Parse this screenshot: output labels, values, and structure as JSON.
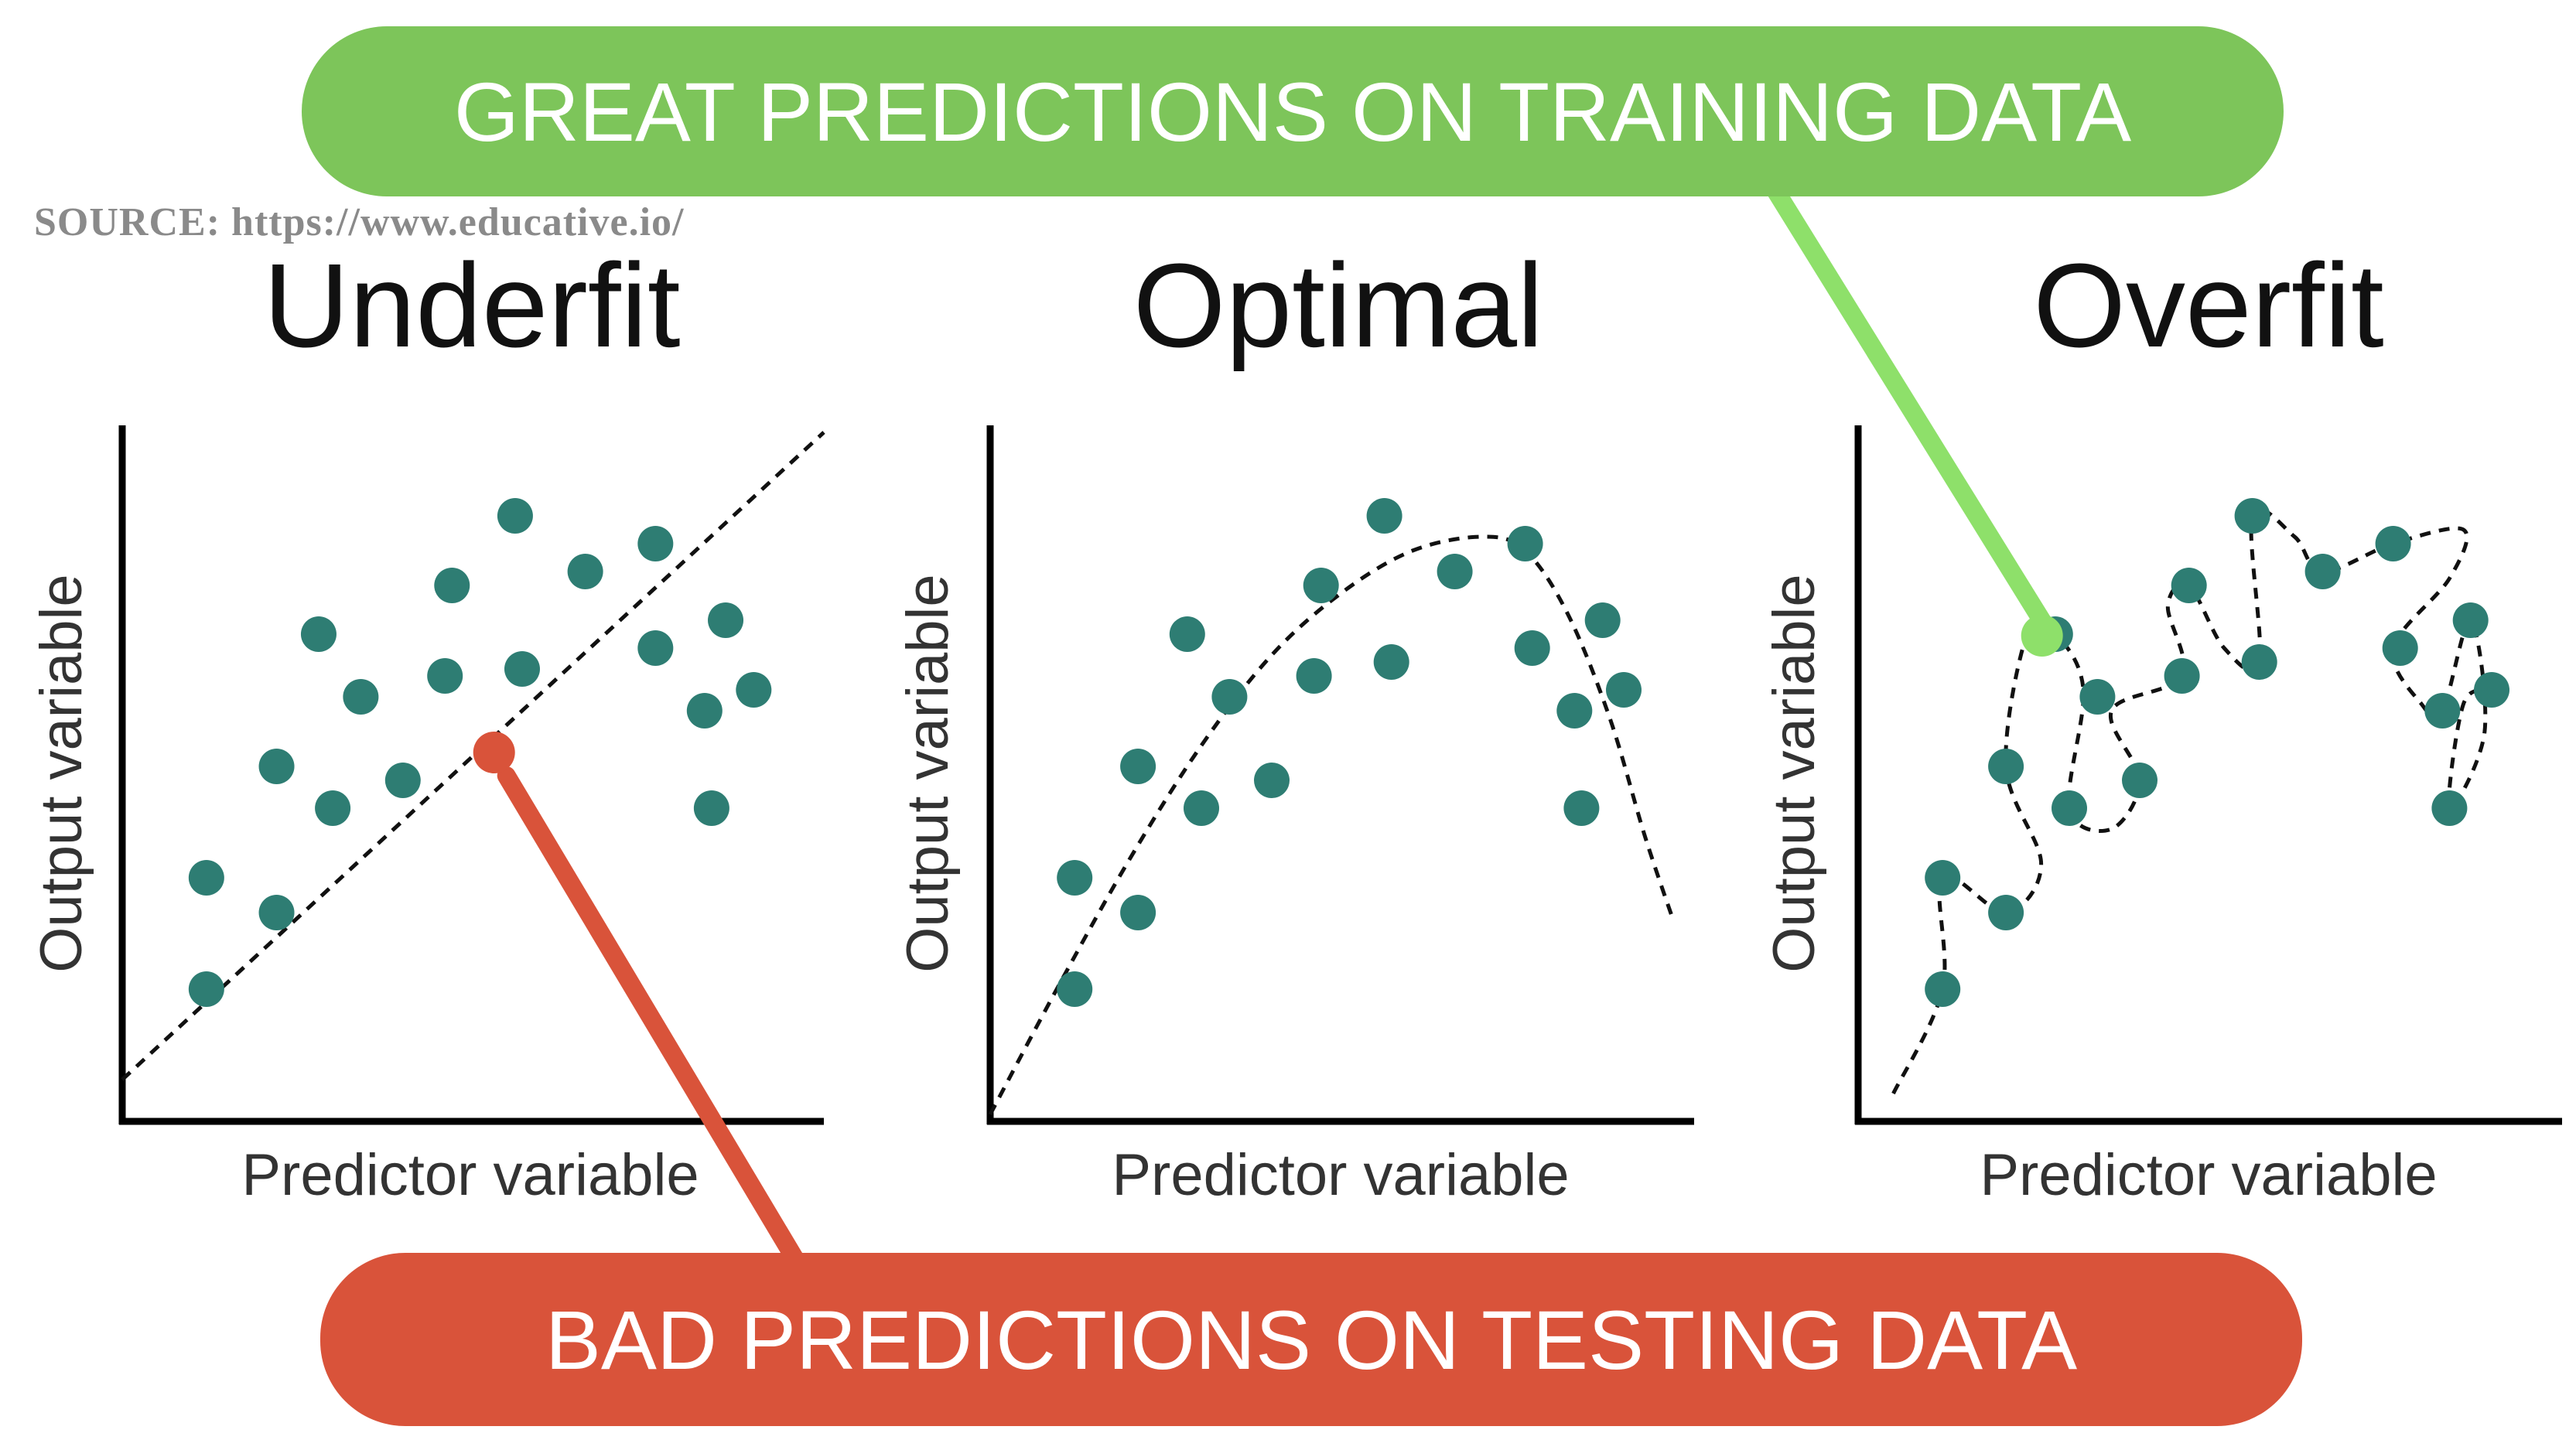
{
  "source_text": "SOURCE: https://www.educative.io/",
  "callouts": {
    "training": "GREAT PREDICTIONS ON TRAINING DATA",
    "testing": "BAD PREDICTIONS ON TESTING DATA"
  },
  "colors": {
    "point": "#2e7d73",
    "training_callout": "#7dc55a",
    "training_leader": "#8ee06a",
    "testing_callout": "#d9533a",
    "axis": "#000000"
  },
  "chart_data": [
    {
      "type": "scatter",
      "title": "Underfit",
      "xlabel": "Predictor variable",
      "ylabel": "Output variable",
      "xlim": [
        0,
        10
      ],
      "ylim": [
        0,
        10
      ],
      "grid": false,
      "points": [
        [
          1.2,
          1.9
        ],
        [
          1.2,
          3.5
        ],
        [
          2.2,
          3.0
        ],
        [
          2.2,
          5.1
        ],
        [
          3.0,
          4.5
        ],
        [
          2.8,
          7.0
        ],
        [
          3.4,
          6.1
        ],
        [
          4.0,
          4.9
        ],
        [
          4.6,
          6.4
        ],
        [
          4.7,
          7.7
        ],
        [
          5.7,
          6.5
        ],
        [
          5.6,
          8.7
        ],
        [
          6.6,
          7.9
        ],
        [
          7.6,
          8.3
        ],
        [
          7.6,
          6.8
        ],
        [
          8.3,
          5.9
        ],
        [
          8.4,
          4.5
        ],
        [
          8.6,
          7.2
        ],
        [
          9.0,
          6.2
        ]
      ],
      "fit": [
        [
          0,
          0.6
        ],
        [
          10,
          9.9
        ]
      ],
      "highlight_point": [
        5.3,
        5.3
      ]
    },
    {
      "type": "scatter",
      "title": "Optimal",
      "xlabel": "Predictor variable",
      "ylabel": "Output variable",
      "xlim": [
        0,
        10
      ],
      "ylim": [
        0,
        10
      ],
      "grid": false,
      "points": [
        [
          1.2,
          1.9
        ],
        [
          1.2,
          3.5
        ],
        [
          2.1,
          3.0
        ],
        [
          2.1,
          5.1
        ],
        [
          3.0,
          4.5
        ],
        [
          2.8,
          7.0
        ],
        [
          3.4,
          6.1
        ],
        [
          4.0,
          4.9
        ],
        [
          4.6,
          6.4
        ],
        [
          4.7,
          7.7
        ],
        [
          5.7,
          6.6
        ],
        [
          5.6,
          8.7
        ],
        [
          6.6,
          7.9
        ],
        [
          7.6,
          8.3
        ],
        [
          7.7,
          6.8
        ],
        [
          8.3,
          5.9
        ],
        [
          8.4,
          4.5
        ],
        [
          8.7,
          7.2
        ],
        [
          9.0,
          6.2
        ]
      ],
      "fit": [
        [
          0,
          0.1
        ],
        [
          1,
          2.0
        ],
        [
          2,
          3.8
        ],
        [
          3,
          5.4
        ],
        [
          4,
          6.7
        ],
        [
          5,
          7.6
        ],
        [
          6,
          8.2
        ],
        [
          7,
          8.4
        ],
        [
          7.6,
          8.2
        ],
        [
          8.2,
          7.3
        ],
        [
          8.8,
          5.8
        ],
        [
          9.3,
          4.1
        ],
        [
          9.7,
          2.9
        ]
      ]
    },
    {
      "type": "scatter",
      "title": "Overfit",
      "xlabel": "Predictor variable",
      "ylabel": "Output variable",
      "xlim": [
        0,
        10
      ],
      "ylim": [
        0,
        10
      ],
      "grid": false,
      "points": [
        [
          1.2,
          1.9
        ],
        [
          1.2,
          3.5
        ],
        [
          2.1,
          3.0
        ],
        [
          2.1,
          5.1
        ],
        [
          3.0,
          4.5
        ],
        [
          2.8,
          7.0
        ],
        [
          3.4,
          6.1
        ],
        [
          4.0,
          4.9
        ],
        [
          4.6,
          6.4
        ],
        [
          4.7,
          7.7
        ],
        [
          5.7,
          6.6
        ],
        [
          5.6,
          8.7
        ],
        [
          6.6,
          7.9
        ],
        [
          7.6,
          8.3
        ],
        [
          7.7,
          6.8
        ],
        [
          8.3,
          5.9
        ],
        [
          8.4,
          4.5
        ],
        [
          8.7,
          7.2
        ],
        [
          9.0,
          6.2
        ]
      ],
      "fit": [
        [
          0.5,
          0.4
        ],
        [
          1.2,
          1.9
        ],
        [
          1.2,
          3.5
        ],
        [
          2.1,
          3.0
        ],
        [
          2.6,
          3.7
        ],
        [
          2.1,
          5.1
        ],
        [
          2.4,
          7.0
        ],
        [
          2.8,
          7.0
        ],
        [
          3.2,
          6.2
        ],
        [
          3.0,
          4.5
        ],
        [
          3.6,
          4.2
        ],
        [
          4.0,
          4.9
        ],
        [
          3.6,
          5.9
        ],
        [
          4.6,
          6.4
        ],
        [
          4.4,
          7.4
        ],
        [
          4.7,
          7.7
        ],
        [
          5.2,
          6.8
        ],
        [
          5.7,
          6.6
        ],
        [
          5.6,
          8.7
        ],
        [
          6.2,
          8.4
        ],
        [
          6.6,
          7.9
        ],
        [
          7.6,
          8.3
        ],
        [
          8.6,
          8.5
        ],
        [
          8.4,
          7.8
        ],
        [
          7.6,
          6.8
        ],
        [
          8.0,
          6.0
        ],
        [
          8.3,
          5.9
        ],
        [
          8.7,
          7.2
        ],
        [
          8.9,
          5.6
        ],
        [
          8.4,
          4.5
        ],
        [
          8.6,
          6.0
        ],
        [
          9.0,
          6.2
        ]
      ],
      "highlight_point": [
        2.7,
        7.0
      ]
    }
  ]
}
